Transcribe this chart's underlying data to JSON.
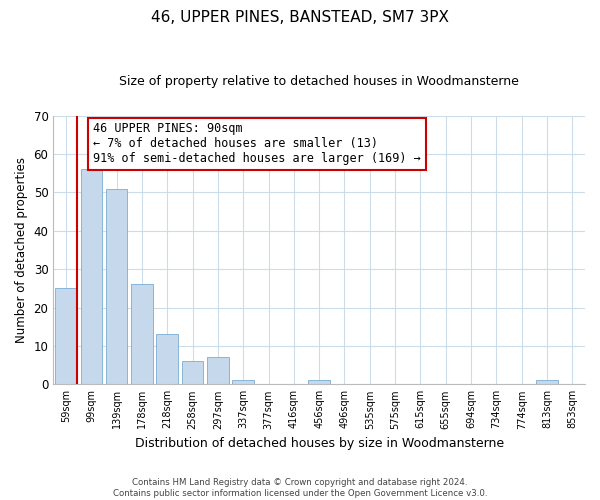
{
  "title": "46, UPPER PINES, BANSTEAD, SM7 3PX",
  "subtitle": "Size of property relative to detached houses in Woodmansterne",
  "xlabel": "Distribution of detached houses by size in Woodmansterne",
  "ylabel": "Number of detached properties",
  "bar_labels": [
    "59sqm",
    "99sqm",
    "139sqm",
    "178sqm",
    "218sqm",
    "258sqm",
    "297sqm",
    "337sqm",
    "377sqm",
    "416sqm",
    "456sqm",
    "496sqm",
    "535sqm",
    "575sqm",
    "615sqm",
    "655sqm",
    "694sqm",
    "734sqm",
    "774sqm",
    "813sqm",
    "853sqm"
  ],
  "bar_values": [
    25,
    56,
    51,
    26,
    13,
    6,
    7,
    1,
    0,
    0,
    1,
    0,
    0,
    0,
    0,
    0,
    0,
    0,
    0,
    1,
    0
  ],
  "bar_color": "#c5d8ec",
  "bar_edge_color": "#7aadd4",
  "ylim": [
    0,
    70
  ],
  "yticks": [
    0,
    10,
    20,
    30,
    40,
    50,
    60,
    70
  ],
  "annotation_title": "46 UPPER PINES: 90sqm",
  "annotation_line1": "← 7% of detached houses are smaller (13)",
  "annotation_line2": "91% of semi-detached houses are larger (169) →",
  "annotation_box_color": "#ffffff",
  "annotation_box_edge": "#cc0000",
  "marker_color": "#cc0000",
  "footer_line1": "Contains HM Land Registry data © Crown copyright and database right 2024.",
  "footer_line2": "Contains public sector information licensed under the Open Government Licence v3.0.",
  "background_color": "#ffffff",
  "grid_color": "#ccdce8",
  "title_fontsize": 11,
  "subtitle_fontsize": 9,
  "ylabel_fontsize": 8.5,
  "xlabel_fontsize": 9
}
